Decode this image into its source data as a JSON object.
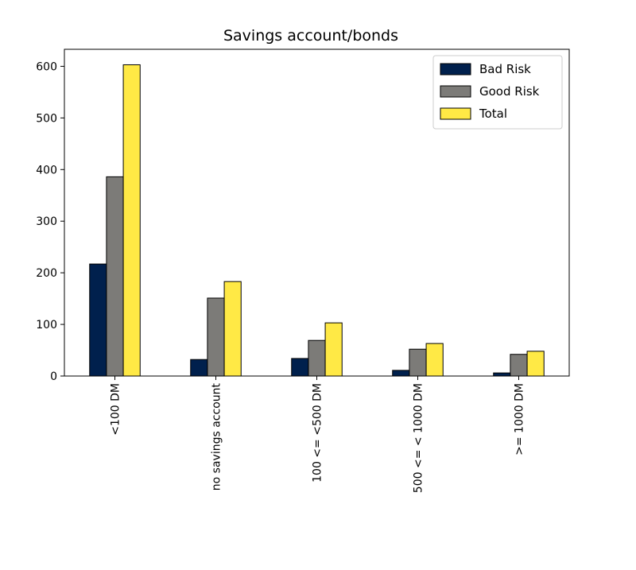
{
  "chart_data": {
    "type": "bar",
    "title": "Savings account/bonds",
    "xlabel": "",
    "ylabel": "",
    "categories": [
      "<100 DM",
      "no savings account",
      "100 <= <500 DM",
      "500 <= < 1000 DM",
      ">= 1000 DM"
    ],
    "series": [
      {
        "name": "Bad Risk",
        "color": "#00204d",
        "values": [
          217,
          32,
          34,
          11,
          6
        ]
      },
      {
        "name": "Good Risk",
        "color": "#7c7b78",
        "values": [
          386,
          151,
          69,
          52,
          42
        ]
      },
      {
        "name": "Total",
        "color": "#ffe945",
        "values": [
          603,
          183,
          103,
          63,
          48
        ]
      }
    ],
    "ylim": [
      0,
      633
    ],
    "yticks": [
      0,
      100,
      200,
      300,
      400,
      500,
      600
    ],
    "grid": false,
    "legend": "top-right"
  }
}
